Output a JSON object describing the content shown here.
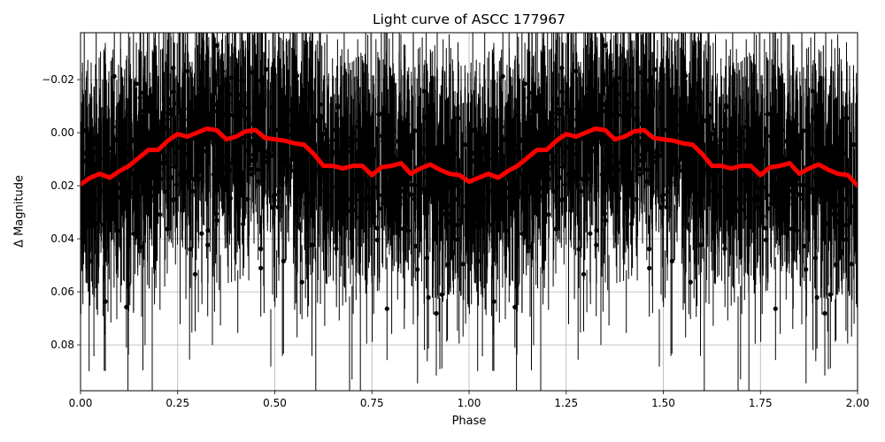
{
  "chart_data": {
    "type": "scatter",
    "title": "Light curve of ASCC 177967",
    "xlabel": "Phase",
    "ylabel": "Δ Magnitude",
    "xlim": [
      0.0,
      2.0
    ],
    "ylim": [
      0.0973,
      -0.0377
    ],
    "y_inverted": true,
    "grid": true,
    "legend": null,
    "x_ticks": [
      0.0,
      0.25,
      0.5,
      0.75,
      1.0,
      1.25,
      1.5,
      1.75,
      2.0
    ],
    "x_tick_labels": [
      "0.00",
      "0.25",
      "0.50",
      "0.75",
      "1.00",
      "1.25",
      "1.50",
      "1.75",
      "2.00"
    ],
    "y_ticks": [
      -0.02,
      0.0,
      0.02,
      0.04,
      0.06,
      0.08
    ],
    "y_tick_labels": [
      "−0.02",
      "0.00",
      "0.02",
      "0.04",
      "0.06",
      "0.08"
    ],
    "series": [
      {
        "name": "observations",
        "style": "black dots with vertical error bars",
        "color": "#000000",
        "description": "Dense phase-folded photometry (two cycles shown), bulk scatter roughly -0.03 to 0.05 mag with error bars extending beyond axis limits"
      },
      {
        "name": "binned mean",
        "style": "thick red line",
        "color": "#ff0000",
        "x": [
          0.0,
          0.025,
          0.05,
          0.075,
          0.1,
          0.125,
          0.15,
          0.175,
          0.2,
          0.225,
          0.25,
          0.275,
          0.3,
          0.325,
          0.35,
          0.375,
          0.4,
          0.425,
          0.45,
          0.475,
          0.5,
          0.525,
          0.55,
          0.575,
          0.6,
          0.625,
          0.65,
          0.675,
          0.7,
          0.725,
          0.75,
          0.775,
          0.8,
          0.825,
          0.85,
          0.875,
          0.9,
          0.925,
          0.95,
          0.975,
          1.0,
          1.025,
          1.05,
          1.075,
          1.1,
          1.125,
          1.15,
          1.175,
          1.2,
          1.225,
          1.25,
          1.275,
          1.3,
          1.325,
          1.35,
          1.375,
          1.4,
          1.425,
          1.45,
          1.475,
          1.5,
          1.525,
          1.55,
          1.575,
          1.6,
          1.625,
          1.65,
          1.675,
          1.7,
          1.725,
          1.75,
          1.775,
          1.8,
          1.825,
          1.85,
          1.875,
          1.9,
          1.925,
          1.95,
          1.975,
          2.0
        ],
        "values": [
          0.0195,
          0.017,
          0.0155,
          0.017,
          0.0145,
          0.0125,
          0.0095,
          0.0065,
          0.0065,
          0.003,
          0.0005,
          0.0015,
          0.0,
          -0.0015,
          -0.001,
          0.0025,
          0.0015,
          -0.0005,
          -0.001,
          0.002,
          0.0025,
          0.003,
          0.004,
          0.0045,
          0.008,
          0.0125,
          0.0125,
          0.0135,
          0.0125,
          0.0125,
          0.016,
          0.013,
          0.0125,
          0.0115,
          0.0155,
          0.0135,
          0.012,
          0.014,
          0.0155,
          0.016,
          0.0185,
          0.017,
          0.0155,
          0.017,
          0.0145,
          0.0125,
          0.0095,
          0.0065,
          0.0065,
          0.003,
          0.0005,
          0.0015,
          0.0,
          -0.0015,
          -0.001,
          0.0025,
          0.0015,
          -0.0005,
          -0.001,
          0.002,
          0.0025,
          0.003,
          0.004,
          0.0045,
          0.008,
          0.0125,
          0.0125,
          0.0135,
          0.0125,
          0.0125,
          0.016,
          0.013,
          0.0125,
          0.0115,
          0.0155,
          0.0135,
          0.012,
          0.014,
          0.0155,
          0.016,
          0.02
        ]
      }
    ]
  }
}
